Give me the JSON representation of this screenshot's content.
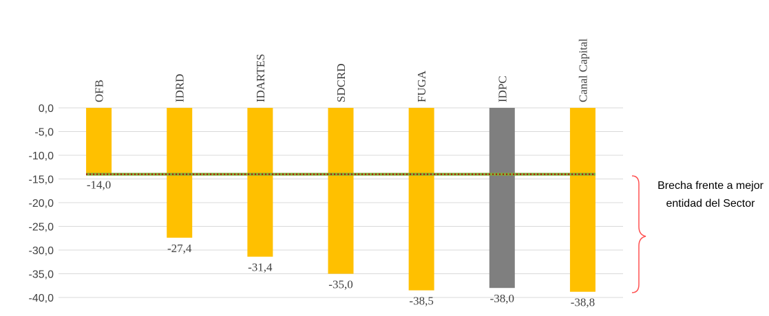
{
  "chart_data": {
    "type": "bar",
    "categories": [
      "OFB",
      "IDRD",
      "IDARTES",
      "SDCRD",
      "FUGA",
      "IDPC",
      "Canal Capital"
    ],
    "values": [
      -14.0,
      -27.4,
      -31.4,
      -35.0,
      -38.5,
      -38.0,
      -38.8
    ],
    "data_labels": [
      "-14,0",
      "-27,4",
      "-31,4",
      "-35,0",
      "-38,5",
      "-38,0",
      "-38,8"
    ],
    "ylim": [
      -40,
      0
    ],
    "yticks": [
      0,
      -5,
      -10,
      -15,
      -20,
      -25,
      -30,
      -35,
      -40
    ],
    "ytick_labels": [
      "0,0",
      "-5,0",
      "-10,0",
      "-15,0",
      "-20,0",
      "-25,0",
      "-30,0",
      "-35,0",
      "-40,0"
    ],
    "reference_line": {
      "value": -14.0
    },
    "grid": true,
    "colors": {
      "bar": "#FFC000",
      "highlight_bar": "#7F7F7F",
      "grid": "#D9D9D9",
      "reference_line": "#7FAE3A",
      "reference_dots": "#C00000",
      "brace": "#FF5050"
    },
    "highlight_category": "IDPC",
    "annotation": "Brecha frente a mejor entidad del Sector"
  }
}
